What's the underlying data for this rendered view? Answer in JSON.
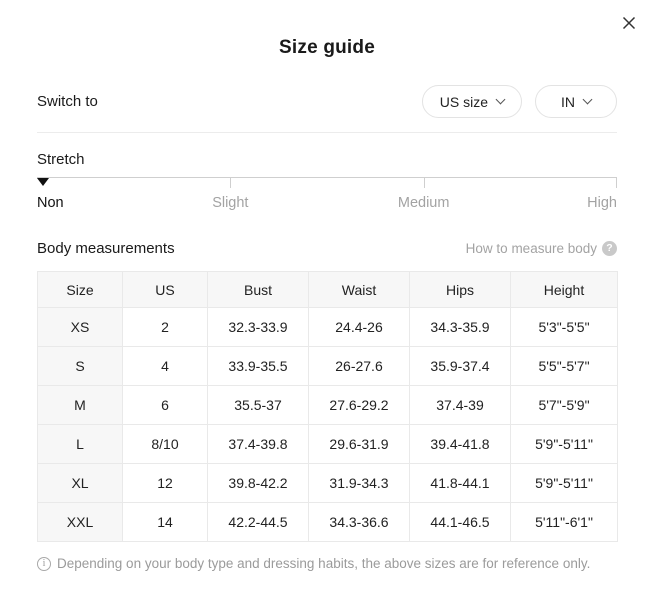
{
  "modal": {
    "title": "Size guide"
  },
  "icons": {
    "close": "✕",
    "chevron_down": "⌄",
    "help": "?",
    "info": "i",
    "stretch_marker": "▼"
  },
  "colors": {
    "text_dark": "#1a1a1a",
    "text_gray": "#a3a3a3",
    "border_light": "#e9e9e9",
    "table_header_bg": "#f7f7f7",
    "track_gray": "#cfcfcf",
    "background": "#ffffff"
  },
  "switch_to": {
    "label": "Switch to",
    "size_system_dropdown": {
      "value": "US size"
    },
    "unit_dropdown": {
      "value": "IN"
    }
  },
  "stretch": {
    "label": "Stretch",
    "options": [
      "Non",
      "Slight",
      "Medium",
      "High"
    ],
    "selected": "Non",
    "selected_index": 0
  },
  "body_measurements": {
    "heading": "Body measurements",
    "measure_link_label": "How to measure body"
  },
  "table": {
    "columns": [
      "Size",
      "US",
      "Bust",
      "Waist",
      "Hips",
      "Height"
    ],
    "rows": [
      [
        "XS",
        "2",
        "32.3-33.9",
        "24.4-26",
        "34.3-35.9",
        "5'3\"-5'5\""
      ],
      [
        "S",
        "4",
        "33.9-35.5",
        "26-27.6",
        "35.9-37.4",
        "5'5\"-5'7\""
      ],
      [
        "M",
        "6",
        "35.5-37",
        "27.6-29.2",
        "37.4-39",
        "5'7\"-5'9\""
      ],
      [
        "L",
        "8/10",
        "37.4-39.8",
        "29.6-31.9",
        "39.4-41.8",
        "5'9\"-5'11\""
      ],
      [
        "XL",
        "12",
        "39.8-42.2",
        "31.9-34.3",
        "41.8-44.1",
        "5'9\"-5'11\""
      ],
      [
        "XXL",
        "14",
        "42.2-44.5",
        "34.3-36.6",
        "44.1-46.5",
        "5'11\"-6'1\""
      ]
    ]
  },
  "footnote": {
    "text": "Depending on your body type and dressing habits, the above sizes are for reference only."
  }
}
